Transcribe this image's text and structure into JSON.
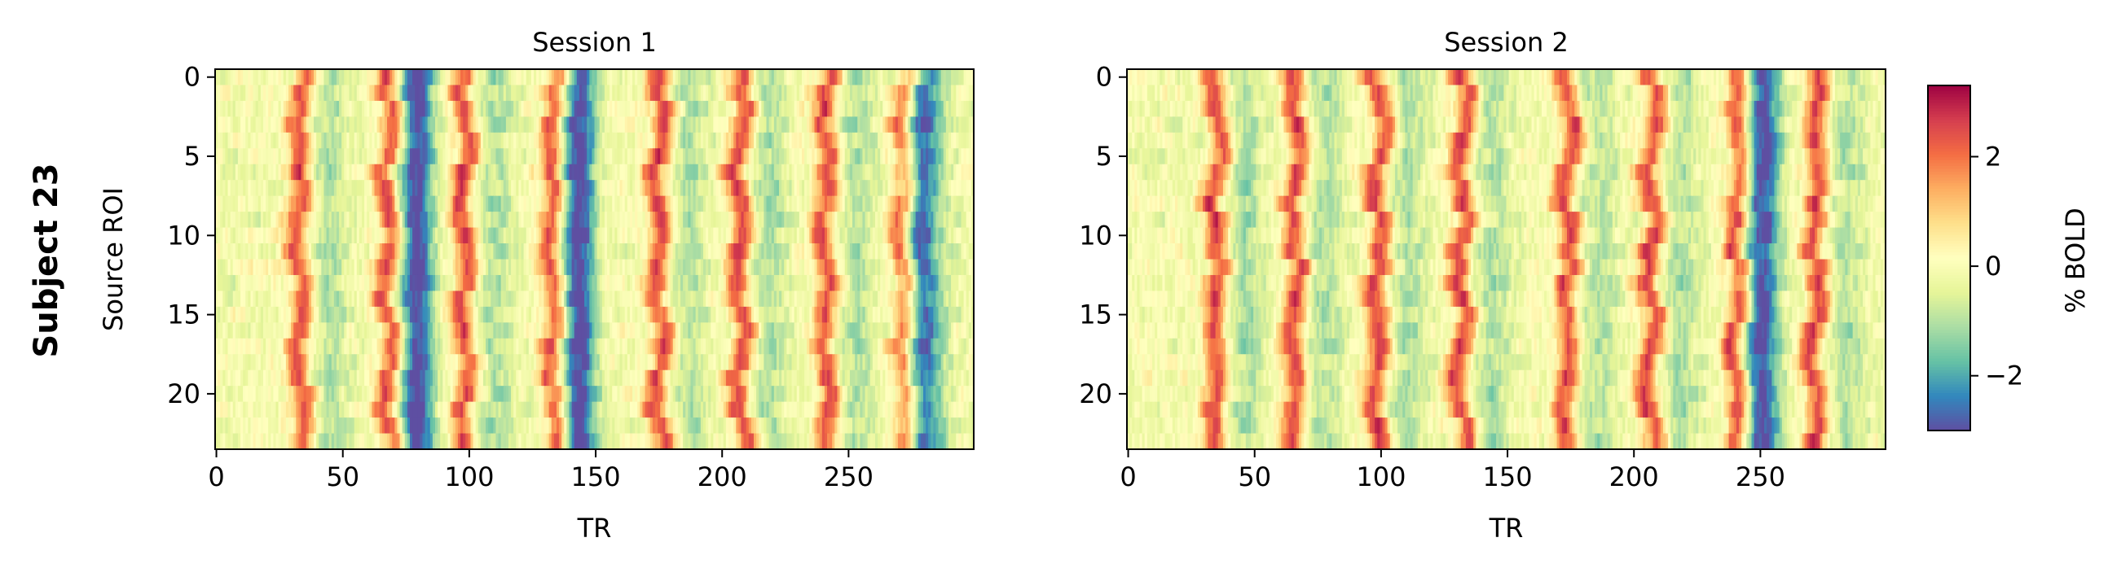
{
  "figure": {
    "row_label": "Subject 23",
    "colorbar_label": "% BOLD",
    "colormap": "Spectral_r",
    "colormap_stops": [
      "#5e4fa2",
      "#3288bd",
      "#66c2a5",
      "#abdda4",
      "#e6f598",
      "#ffffbf",
      "#fee08b",
      "#fdae61",
      "#f46d43",
      "#d53e4f",
      "#9e0142"
    ]
  },
  "chart_data": [
    {
      "type": "heatmap",
      "title": "Session 1",
      "xlabel": "TR",
      "ylabel": "Source ROI",
      "x_range": [
        0,
        299
      ],
      "y_range": [
        0,
        23
      ],
      "y_inverted": true,
      "x_ticks": [
        "0",
        "50",
        "100",
        "150",
        "200",
        "250"
      ],
      "y_ticks": [
        "0",
        "5",
        "10",
        "15",
        "20"
      ],
      "grid": false,
      "n_rois": 24,
      "n_trs": 300,
      "peak_trs": [
        33,
        68,
        98,
        133,
        175,
        207,
        241,
        272
      ],
      "trough_trs": [
        79,
        143,
        278
      ],
      "value_range": [
        -3,
        3.3
      ]
    },
    {
      "type": "heatmap",
      "title": "Session 2",
      "xlabel": "TR",
      "ylabel": "",
      "x_range": [
        0,
        299
      ],
      "y_range": [
        0,
        23
      ],
      "y_inverted": true,
      "x_ticks": [
        "0",
        "50",
        "100",
        "150",
        "200",
        "250"
      ],
      "y_ticks": [
        "0",
        "5",
        "10",
        "15",
        "20"
      ],
      "grid": false,
      "n_rois": 24,
      "n_trs": 300,
      "peak_trs": [
        35,
        66,
        99,
        132,
        174,
        207,
        241,
        272
      ],
      "trough_trs": [
        250
      ],
      "value_range": [
        -3,
        3.3
      ]
    }
  ],
  "colorbar": {
    "min": -3,
    "max": 3.3,
    "ticks": [
      -2,
      0,
      2
    ],
    "tick_labels": [
      "−2",
      "0",
      "2"
    ]
  }
}
